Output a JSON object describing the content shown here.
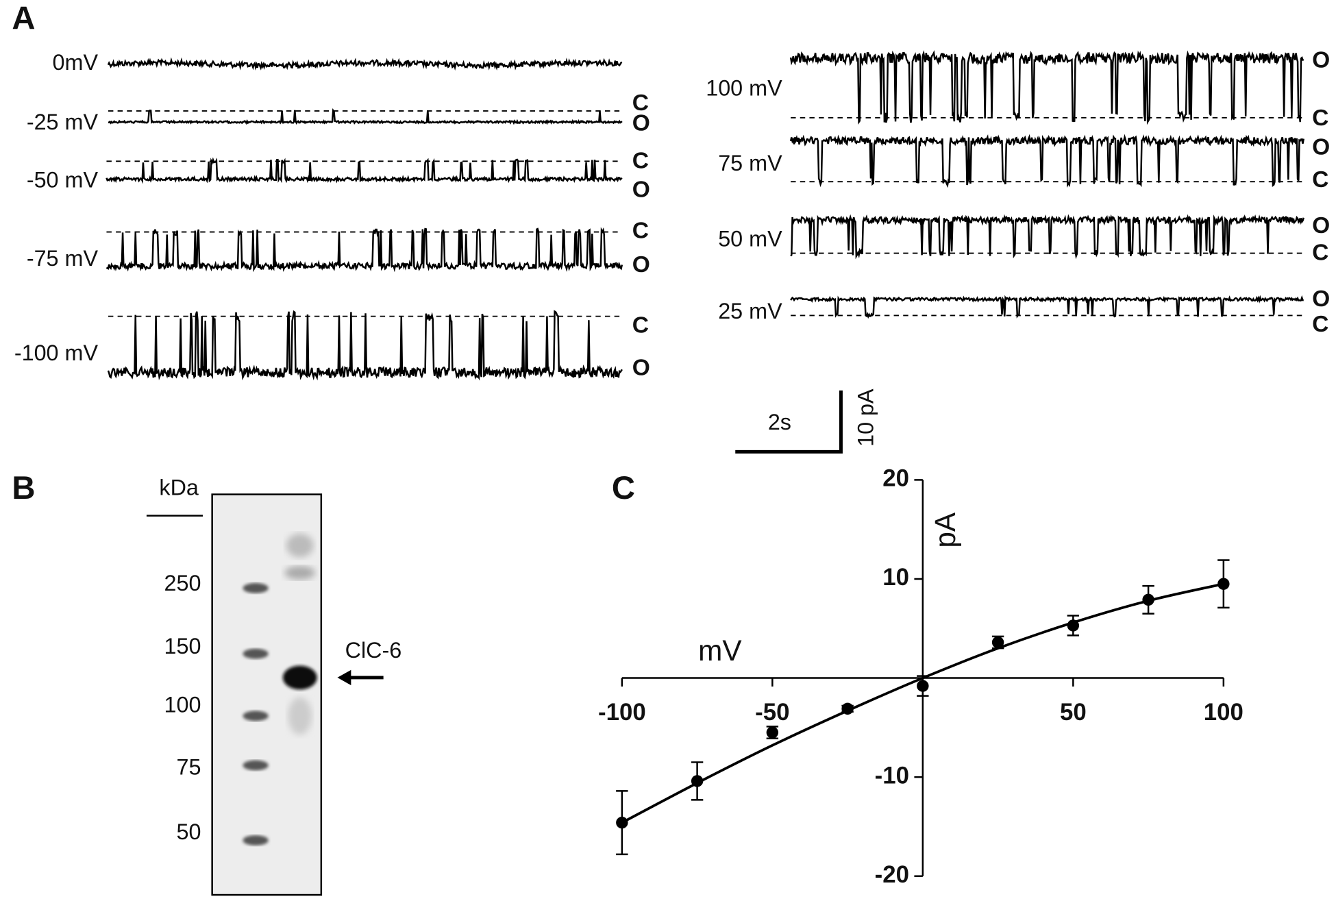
{
  "panels": {
    "a": "A",
    "b": "B",
    "c": "C"
  },
  "traces": {
    "left": [
      {
        "label": "0mV"
      },
      {
        "label": "-25 mV",
        "upper": "C",
        "lower": "O"
      },
      {
        "label": "-50 mV",
        "upper": "C",
        "lower": "O"
      },
      {
        "label": "-75 mV",
        "upper": "C",
        "lower": "O"
      },
      {
        "label": "-100 mV",
        "upper": "C",
        "lower": "O"
      }
    ],
    "right": [
      {
        "label": "100 mV",
        "upper": "O",
        "lower": "C"
      },
      {
        "label": "75 mV",
        "upper": "O",
        "lower": "C"
      },
      {
        "label": "50 mV",
        "upper": "O",
        "lower": "C"
      },
      {
        "label": "25 mV",
        "upper": "O",
        "lower": "C"
      }
    ]
  },
  "scale_bar": {
    "time": "2s",
    "current": "10 pA"
  },
  "blot": {
    "unit": "kDa",
    "markers": [
      250,
      150,
      100,
      75,
      50
    ],
    "band_label": "ClC-6"
  },
  "chart_data": {
    "type": "scatter",
    "x_label": "mV",
    "y_label": "pA",
    "x": [
      -100,
      -75,
      -50,
      -25,
      0,
      25,
      50,
      75,
      100
    ],
    "series": [
      {
        "color": "#000000",
        "values": [
          -14.6,
          -10.4,
          -5.5,
          -3.1,
          -0.8,
          3.6,
          5.3,
          7.9,
          9.5
        ],
        "errors": [
          3.2,
          1.9,
          0.6,
          0.3,
          1.0,
          0.6,
          1.0,
          1.4,
          2.4
        ]
      }
    ],
    "fit": {
      "color": "#000000",
      "values": [
        -14.6,
        -10.6,
        -6.8,
        -3.3,
        0,
        3.0,
        5.6,
        7.8,
        9.5
      ]
    },
    "xlim": [
      -100,
      100
    ],
    "ylim": [
      -20,
      20
    ],
    "xticks": [
      -100,
      -50,
      50,
      100
    ],
    "yticks": [
      -20,
      -10,
      10,
      20
    ]
  }
}
